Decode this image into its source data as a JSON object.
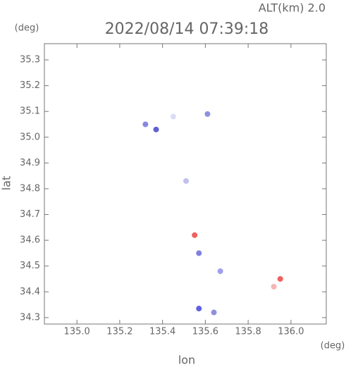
{
  "chart_data": {
    "type": "scatter",
    "title": "2022/08/14 07:39:18",
    "subtitle": "ALT(km) 2.0",
    "x_unit": "(deg)",
    "y_unit": "(deg)",
    "x_label": "lon",
    "y_label": "lat",
    "x": [
      135.45,
      135.32,
      135.37,
      135.61,
      135.51,
      135.55,
      135.57,
      135.67,
      135.92,
      135.95,
      135.57,
      135.64
    ],
    "y": [
      35.08,
      35.05,
      35.03,
      35.09,
      34.83,
      34.62,
      34.55,
      34.48,
      34.42,
      34.45,
      34.335,
      34.32
    ],
    "colors": [
      "#dcdcf8",
      "#8888e0",
      "#6060d0",
      "#9090e0",
      "#c0c0f0",
      "#f06060",
      "#8080e0",
      "#a0a0f0",
      "#f5b5b5",
      "#f06060",
      "#6060e0",
      "#9090e0"
    ],
    "xlim": [
      134.848,
      136.165
    ],
    "ylim": [
      34.275,
      35.363
    ],
    "xticks": [
      {
        "value": 135.0,
        "label": "135.0"
      },
      135.2,
      135.4,
      135.6,
      135.8,
      {
        "value": 136.0,
        "label": "136.0"
      }
    ],
    "yticks": [
      34.3,
      34.4,
      34.5,
      34.6,
      34.7,
      34.8,
      34.9,
      {
        "value": 35.0,
        "label": "35.0"
      },
      35.1,
      35.2,
      35.3
    ]
  }
}
